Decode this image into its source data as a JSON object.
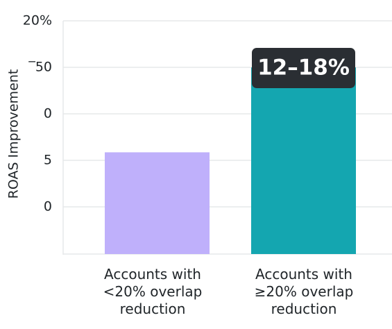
{
  "chart_data": {
    "type": "bar",
    "ylabel": "ROAS Improvement",
    "y_tick_labels": [
      "20%",
      "‾50",
      "0",
      "5",
      "0"
    ],
    "grid": true,
    "categories": [
      [
        "Accounts with",
        "<20% overlap",
        "reduction"
      ],
      [
        "Accounts with",
        "≥20% overlap",
        "reduction"
      ]
    ],
    "values": [
      0.6,
      0.8
    ],
    "callout": "12–18%",
    "colors": {
      "bar_1": "#bfb0fb",
      "bar_2": "#14a6b0",
      "callout_bg": "#2a2e33",
      "grid": "#e6e8ea"
    }
  }
}
